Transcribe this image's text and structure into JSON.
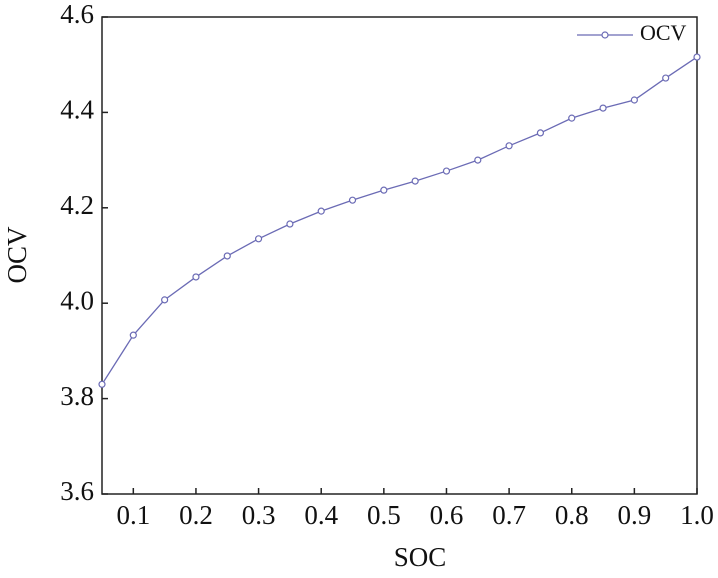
{
  "chart_data": {
    "type": "line",
    "x_label": "SOC",
    "y_label": "OCV",
    "x": [
      0.05,
      0.1,
      0.15,
      0.2,
      0.25,
      0.3,
      0.35,
      0.4,
      0.45,
      0.5,
      0.55,
      0.6,
      0.65,
      0.7,
      0.75,
      0.8,
      0.85,
      0.9,
      0.95,
      1.0
    ],
    "series": [
      {
        "name": "OCV",
        "color": "#6b6bb5",
        "values": [
          3.83,
          3.933,
          4.007,
          4.055,
          4.099,
          4.135,
          4.166,
          4.193,
          4.216,
          4.237,
          4.256,
          4.277,
          4.3,
          4.33,
          4.357,
          4.388,
          4.409,
          4.426,
          4.472,
          4.516
        ]
      }
    ],
    "xlim": [
      0.05,
      1.0
    ],
    "ylim": [
      3.6,
      4.6
    ],
    "xticks": [
      0.1,
      0.2,
      0.3,
      0.4,
      0.5,
      0.6,
      0.7,
      0.8,
      0.9,
      {
        "value": 1.0,
        "label": "1.0"
      }
    ],
    "yticks": [
      3.6,
      3.8,
      {
        "value": 4.0,
        "label": "4.0"
      },
      4.2,
      4.4,
      4.6
    ],
    "legend": "top-right"
  }
}
